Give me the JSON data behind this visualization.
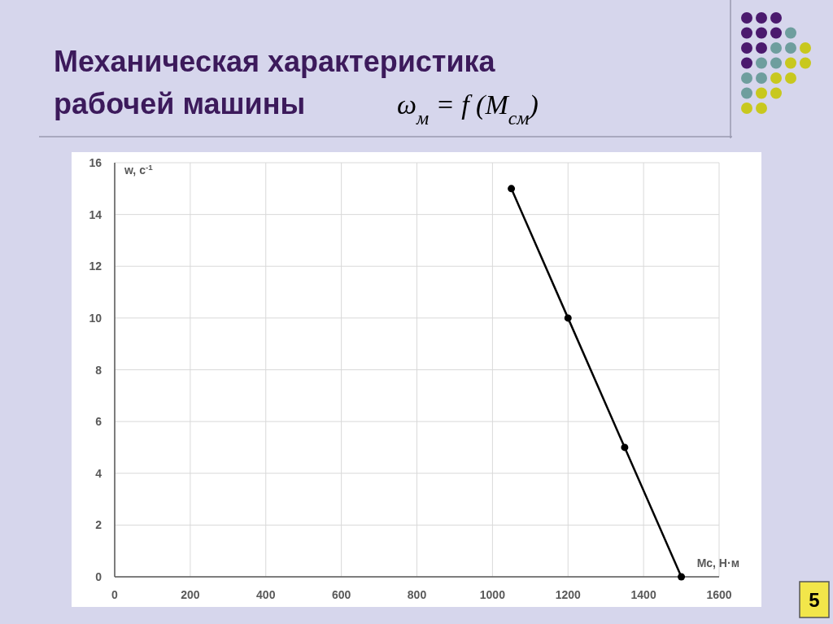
{
  "chart_data": {
    "type": "line",
    "title": "Механическая характеристика рабочей машины",
    "subtitle": "ω$_{м}$ = f (M$_{см}$)",
    "xlabel": "Mc, Н·м",
    "ylabel": "w, c$^{-1}$",
    "x": [
      1050,
      1200,
      1350,
      1500
    ],
    "series": [
      {
        "color": "#000000",
        "values": [
          15,
          10,
          5,
          0
        ]
      }
    ],
    "xlim": [
      0,
      1600
    ],
    "xticks": [
      0,
      200,
      400,
      600,
      800,
      1000,
      1200,
      1400,
      1600
    ],
    "ylim": [
      0,
      16
    ],
    "yticks": [
      0,
      2,
      4,
      6,
      8,
      10,
      12,
      14,
      16
    ],
    "grid": true,
    "marker": "circle",
    "line_style": "solid",
    "annotations": [
      "5"
    ]
  }
}
